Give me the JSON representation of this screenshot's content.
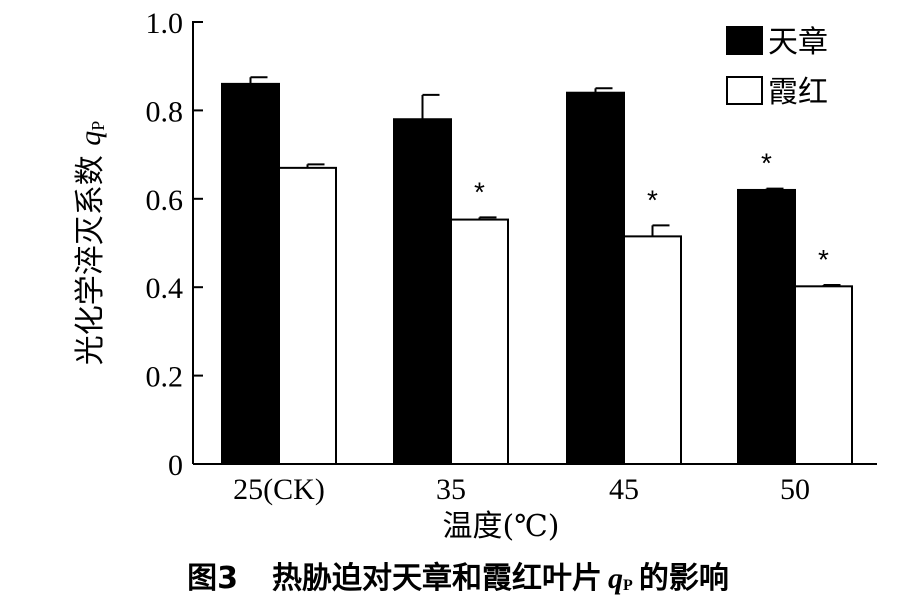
{
  "caption": {
    "figure_no": "图3",
    "text_before": "热胁迫对天章和霞红叶片",
    "symbol": "q",
    "symbol_sub": "P",
    "text_after": "的影响"
  },
  "chart_data": {
    "type": "bar",
    "categories": [
      "25(CK)",
      "35",
      "45",
      "50"
    ],
    "series": [
      {
        "name": "天章",
        "color": "#000000",
        "values": [
          0.86,
          0.78,
          0.84,
          0.62
        ],
        "errors": [
          0.015,
          0.055,
          0.01,
          0.003
        ],
        "significance": [
          "",
          "",
          "",
          "*"
        ]
      },
      {
        "name": "霞红",
        "color": "#ffffff",
        "values": [
          0.67,
          0.553,
          0.515,
          0.402
        ],
        "errors": [
          0.008,
          0.005,
          0.025,
          0.003
        ],
        "significance": [
          "",
          "*",
          "*",
          "*"
        ]
      }
    ],
    "xlabel": "温度(℃)",
    "ylabel_text": "光化学淬灭系数",
    "ylabel_symbol": "q",
    "ylabel_sub": "P",
    "ylim": [
      0,
      1.0
    ],
    "yticks": [
      "0",
      "0.2",
      "0.4",
      "0.6",
      "0.8",
      "1.0"
    ],
    "grid": false,
    "legend_position": "top-right"
  }
}
